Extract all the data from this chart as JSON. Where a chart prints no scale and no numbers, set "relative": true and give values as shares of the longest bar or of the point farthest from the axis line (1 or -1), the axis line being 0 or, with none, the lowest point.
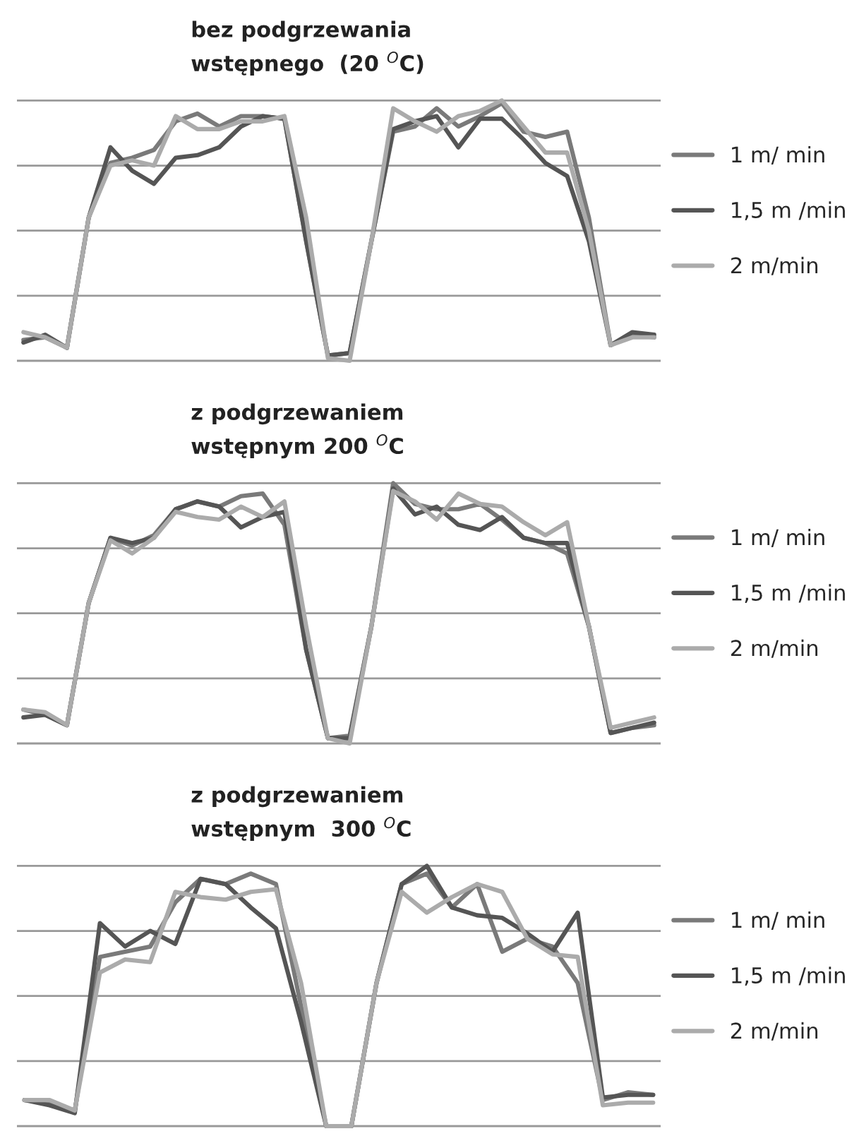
{
  "chart_data": [
    {
      "type": "line",
      "relative": true,
      "title": "bez podgrzewania\nwstępnego  (20 $^{O}$C)",
      "grid": "y",
      "legend": "right",
      "categories": [
        null,
        null,
        null,
        null,
        null,
        null,
        null,
        null,
        null,
        null,
        null,
        null,
        null,
        null,
        null,
        null,
        null,
        null,
        null,
        null,
        null,
        null,
        null,
        null,
        null,
        null,
        null,
        null,
        null,
        null
      ],
      "series": [
        {
          "name": "1 m/ min",
          "color": "#7a7a7a",
          "values": [
            0.08,
            0.09,
            0.05,
            0.55,
            0.76,
            0.78,
            0.81,
            0.92,
            0.95,
            0.9,
            0.94,
            0.94,
            0.93,
            0.46,
            0.02,
            0.03,
            0.46,
            0.88,
            0.9,
            0.97,
            0.9,
            0.94,
            0.99,
            0.88,
            0.86,
            0.88,
            0.55,
            0.06,
            0.1,
            0.09
          ]
        },
        {
          "name": "1,5 m /min",
          "color": "#555555",
          "values": [
            0.07,
            0.1,
            0.05,
            0.55,
            0.82,
            0.73,
            0.68,
            0.78,
            0.79,
            0.82,
            0.9,
            0.94,
            0.93,
            0.46,
            0.02,
            0.03,
            0.46,
            0.89,
            0.92,
            0.94,
            0.82,
            0.93,
            0.93,
            0.85,
            0.76,
            0.71,
            0.46,
            0.06,
            0.11,
            0.1
          ]
        },
        {
          "name": "2 m/min",
          "color": "#ababab",
          "values": [
            0.11,
            0.09,
            0.05,
            0.55,
            0.75,
            0.77,
            0.75,
            0.94,
            0.89,
            0.89,
            0.92,
            0.92,
            0.94,
            0.55,
            0.01,
            0.0,
            0.46,
            0.97,
            0.92,
            0.88,
            0.94,
            0.96,
            1.0,
            0.9,
            0.8,
            0.8,
            0.5,
            0.06,
            0.09,
            0.09
          ]
        }
      ]
    },
    {
      "type": "line",
      "relative": true,
      "title": "z podgrzewaniem\nwstępnym 200 $^{O}$C",
      "grid": "y",
      "legend": "right",
      "categories": [
        null,
        null,
        null,
        null,
        null,
        null,
        null,
        null,
        null,
        null,
        null,
        null,
        null,
        null,
        null,
        null,
        null,
        null,
        null,
        null,
        null,
        null,
        null,
        null,
        null,
        null,
        null,
        null,
        null,
        null
      ],
      "series": [
        {
          "name": "1 m/ min",
          "color": "#7a7a7a",
          "values": [
            0.13,
            0.11,
            0.07,
            0.54,
            0.79,
            0.76,
            0.8,
            0.9,
            0.93,
            0.91,
            0.95,
            0.96,
            0.84,
            0.36,
            0.02,
            0.03,
            0.45,
            1.0,
            0.92,
            0.9,
            0.9,
            0.92,
            0.86,
            0.79,
            0.77,
            0.73,
            0.45,
            0.04,
            0.06,
            0.07
          ]
        },
        {
          "name": "1,5 m /min",
          "color": "#555555",
          "values": [
            0.1,
            0.11,
            0.07,
            0.54,
            0.79,
            0.77,
            0.79,
            0.9,
            0.93,
            0.91,
            0.83,
            0.87,
            0.89,
            0.36,
            0.02,
            0.02,
            0.45,
            0.98,
            0.88,
            0.91,
            0.84,
            0.82,
            0.87,
            0.79,
            0.77,
            0.77,
            0.45,
            0.04,
            0.06,
            0.08
          ]
        },
        {
          "name": "2 m/min",
          "color": "#ababab",
          "values": [
            0.13,
            0.12,
            0.07,
            0.54,
            0.78,
            0.73,
            0.79,
            0.89,
            0.87,
            0.86,
            0.91,
            0.87,
            0.93,
            0.45,
            0.02,
            0.0,
            0.45,
            0.97,
            0.93,
            0.86,
            0.96,
            0.92,
            0.91,
            0.85,
            0.8,
            0.85,
            0.45,
            0.06,
            0.08,
            0.1
          ]
        }
      ]
    },
    {
      "type": "line",
      "relative": true,
      "title": "z podgrzewaniem\nwstępnym  300 $^{O}$C",
      "grid": "y",
      "legend": "right",
      "categories": [
        null,
        null,
        null,
        null,
        null,
        null,
        null,
        null,
        null,
        null,
        null,
        null,
        null,
        null,
        null,
        null,
        null,
        null,
        null,
        null,
        null,
        null,
        null,
        null,
        null,
        null
      ],
      "series": [
        {
          "name": "1 m/ min",
          "color": "#7a7a7a",
          "values": [
            0.1,
            0.09,
            0.06,
            0.65,
            0.67,
            0.69,
            0.86,
            0.95,
            0.93,
            0.97,
            0.93,
            0.46,
            0.0,
            0.0,
            0.55,
            0.93,
            0.97,
            0.84,
            0.93,
            0.67,
            0.72,
            0.69,
            0.55,
            0.1,
            0.13,
            0.12
          ]
        },
        {
          "name": "1,5 m /min",
          "color": "#555555",
          "values": [
            0.1,
            0.08,
            0.05,
            0.78,
            0.69,
            0.75,
            0.7,
            0.95,
            0.93,
            0.84,
            0.76,
            0.4,
            0.0,
            0.0,
            0.55,
            0.93,
            1.0,
            0.84,
            0.81,
            0.8,
            0.74,
            0.67,
            0.82,
            0.11,
            0.12,
            0.12
          ]
        },
        {
          "name": "2 m/min",
          "color": "#ababab",
          "values": [
            0.1,
            0.1,
            0.06,
            0.59,
            0.64,
            0.63,
            0.9,
            0.88,
            0.87,
            0.9,
            0.91,
            0.55,
            0.0,
            0.0,
            0.55,
            0.9,
            0.82,
            0.88,
            0.93,
            0.9,
            0.72,
            0.66,
            0.65,
            0.08,
            0.09,
            0.09
          ]
        }
      ]
    }
  ]
}
